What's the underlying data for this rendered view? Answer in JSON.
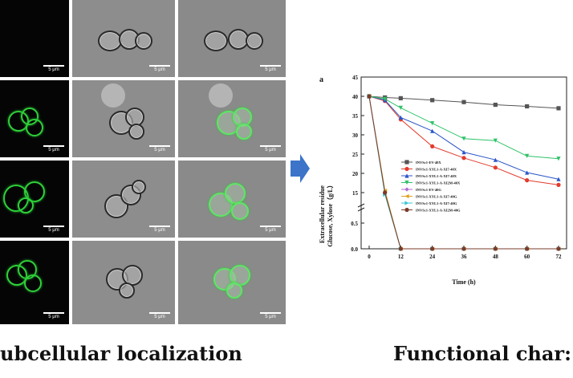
{
  "grid": {
    "scale_bar_label": "5 μm"
  },
  "captions": {
    "left": "ubcellular localization",
    "right": "Functional char:"
  },
  "chart_data": {
    "type": "line",
    "panel_label": "a",
    "xlabel": "Time (h)",
    "ylabel_line1": "Extracellular residue",
    "ylabel_line2": "Glucose, Xylose（g/L）",
    "x_ticks": [
      0,
      12,
      24,
      36,
      48,
      60,
      72
    ],
    "y_ticks_upper": [
      15,
      20,
      25,
      30,
      35,
      40,
      45
    ],
    "y_ticks_lower": [
      "0.0",
      "0.5"
    ],
    "ylim_upper": [
      15,
      45
    ],
    "ylim_lower": [
      0,
      0.5
    ],
    "x": [
      0,
      6,
      12,
      24,
      36,
      48,
      60,
      72
    ],
    "series": [
      {
        "name": "INVSc1-EV-40X",
        "color": "#555555",
        "marker": "square",
        "values": [
          40,
          39.7,
          39.5,
          39,
          38.5,
          37.8,
          37.4,
          36.9
        ]
      },
      {
        "name": "INVSc1-XYL1-A-XI7-40X",
        "color": "#e23b2e",
        "marker": "circle",
        "values": [
          40,
          38.8,
          34,
          27,
          24,
          21.5,
          18.2,
          17
        ]
      },
      {
        "name": "INVSc1-XYL1-A-XI7-40X",
        "color": "#2a55c8",
        "marker": "triangle",
        "values": [
          40,
          39,
          34.5,
          31,
          25.5,
          23.5,
          20.2,
          18.5
        ]
      },
      {
        "name": "INVSc1-XYL1-A-XI2M-40X",
        "color": "#2fc36a",
        "marker": "triangle-down",
        "values": [
          40,
          39.3,
          37,
          33,
          29,
          28.5,
          24.5,
          23.8
        ]
      },
      {
        "name": "INVSc1-EV-40G",
        "color": "#b36ad6",
        "marker": "diamond",
        "values": [
          40,
          15,
          0,
          0,
          0,
          0,
          0,
          0
        ]
      },
      {
        "name": "INVSc1-XYL1-A-XI7-40G",
        "color": "#e0a020",
        "marker": "triangle-left",
        "values": [
          40,
          15.5,
          0,
          0,
          0,
          0,
          0,
          0
        ]
      },
      {
        "name": "INVSc1-XYL1-A-XI7-40G",
        "color": "#39c6d6",
        "marker": "triangle-right",
        "values": [
          40,
          14.5,
          0,
          0,
          0,
          0,
          0,
          0
        ]
      },
      {
        "name": "INVSc1-XYL1-A-XI2M-40G",
        "color": "#7a3b2a",
        "marker": "hexagon",
        "values": [
          40,
          15,
          0,
          0,
          0,
          0,
          0,
          0
        ]
      }
    ]
  }
}
